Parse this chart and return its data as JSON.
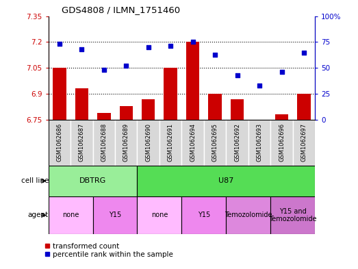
{
  "title": "GDS4808 / ILMN_1751460",
  "samples": [
    "GSM1062686",
    "GSM1062687",
    "GSM1062688",
    "GSM1062689",
    "GSM1062690",
    "GSM1062691",
    "GSM1062694",
    "GSM1062695",
    "GSM1062692",
    "GSM1062693",
    "GSM1062696",
    "GSM1062697"
  ],
  "transformed_count": [
    7.05,
    6.93,
    6.79,
    6.83,
    6.87,
    7.05,
    7.2,
    6.9,
    6.87,
    6.75,
    6.78,
    6.9
  ],
  "percentile_rank": [
    73,
    68,
    48,
    52,
    70,
    71,
    75,
    63,
    43,
    33,
    46,
    65
  ],
  "ylim_left": [
    6.75,
    7.35
  ],
  "ylim_right": [
    0,
    100
  ],
  "yticks_left": [
    6.75,
    6.9,
    7.05,
    7.2,
    7.35
  ],
  "yticks_right": [
    0,
    25,
    50,
    75,
    100
  ],
  "ytick_labels_left": [
    "6.75",
    "6.9",
    "7.05",
    "7.2",
    "7.35"
  ],
  "ytick_labels_right": [
    "0",
    "25",
    "50",
    "75",
    "100%"
  ],
  "hlines": [
    6.9,
    7.05,
    7.2
  ],
  "bar_color": "#cc0000",
  "dot_color": "#0000cc",
  "bar_bottom": 6.75,
  "cell_line_groups": [
    {
      "label": "DBTRG",
      "start": 0,
      "end": 4,
      "color": "#99ee99"
    },
    {
      "label": "U87",
      "start": 4,
      "end": 12,
      "color": "#55dd55"
    }
  ],
  "agent_groups": [
    {
      "label": "none",
      "start": 0,
      "end": 2,
      "color": "#ffbbff"
    },
    {
      "label": "Y15",
      "start": 2,
      "end": 4,
      "color": "#ee88ee"
    },
    {
      "label": "none",
      "start": 4,
      "end": 6,
      "color": "#ffbbff"
    },
    {
      "label": "Y15",
      "start": 6,
      "end": 8,
      "color": "#ee88ee"
    },
    {
      "label": "Temozolomide",
      "start": 8,
      "end": 10,
      "color": "#dd88dd"
    },
    {
      "label": "Y15 and\nTemozolomide",
      "start": 10,
      "end": 12,
      "color": "#cc77cc"
    }
  ],
  "legend_bar_label": "transformed count",
  "legend_dot_label": "percentile rank within the sample",
  "cell_line_label": "cell line",
  "agent_label": "agent",
  "sample_bg_color": "#d8d8d8",
  "n_samples": 12
}
